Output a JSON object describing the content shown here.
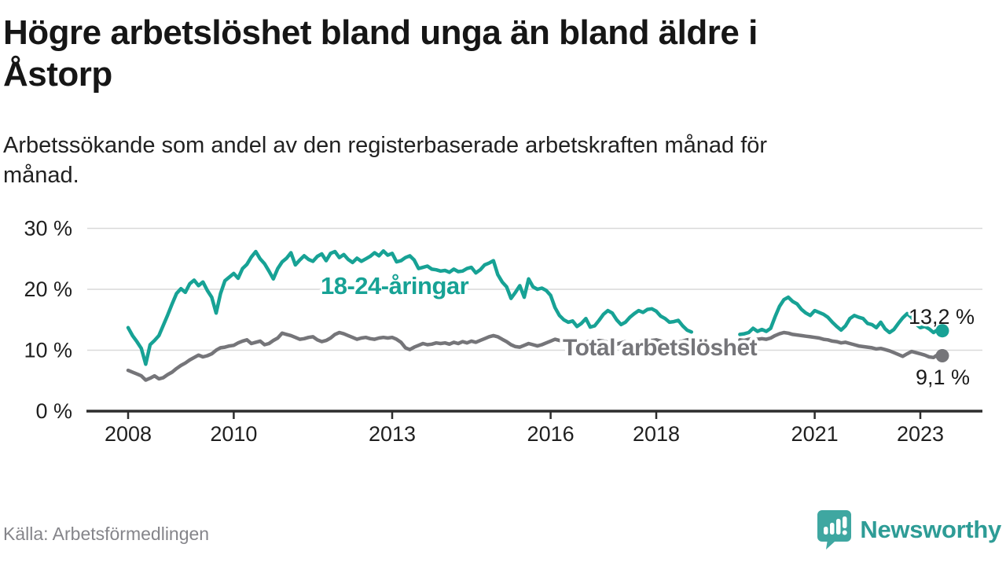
{
  "header": {
    "title_lines": [
      "Högre arbetslöshet bland unga än bland äldre i",
      "Åstorp"
    ],
    "subtitle_lines": [
      "Arbetssökande som andel av den registerbaserade arbetskraften månad för",
      "månad."
    ]
  },
  "chart_data": {
    "type": "line",
    "unit": "%",
    "frequency": "monthly",
    "start": "2008-01",
    "end": "2023-06",
    "data_gap": {
      "from": "2018-10",
      "to": "2019-07"
    },
    "ylim": [
      0,
      32
    ],
    "grid": "horizontal",
    "y_ticks": [
      {
        "label": "0 %",
        "value": 0
      },
      {
        "label": "10 %",
        "value": 10
      },
      {
        "label": "20 %",
        "value": 20
      },
      {
        "label": "30 %",
        "value": 30
      }
    ],
    "x_ticks": [
      {
        "label": "2008",
        "index": 0
      },
      {
        "label": "2010",
        "index": 24
      },
      {
        "label": "2013",
        "index": 60
      },
      {
        "label": "2016",
        "index": 96
      },
      {
        "label": "2018",
        "index": 120
      },
      {
        "label": "2021",
        "index": 156
      },
      {
        "label": "2023",
        "index": 180
      }
    ],
    "series": [
      {
        "key": "youth",
        "label": "18-24-åringar",
        "color": "#17A295",
        "end_value": 13.2,
        "end_label": "13,2 %",
        "values": [
          13.7,
          12.4,
          11.4,
          10.3,
          7.7,
          10.9,
          11.6,
          12.4,
          14.1,
          15.8,
          17.6,
          19.3,
          20.1,
          19.5,
          20.9,
          21.5,
          20.6,
          21.2,
          19.8,
          18.7,
          16.1,
          19.3,
          21.4,
          22.0,
          22.6,
          21.8,
          23.4,
          24.1,
          25.3,
          26.2,
          25.0,
          24.2,
          23.0,
          21.7,
          23.4,
          24.5,
          25.1,
          26.0,
          24.0,
          24.8,
          25.5,
          24.9,
          24.6,
          25.4,
          25.8,
          24.7,
          25.9,
          26.2,
          25.2,
          25.7,
          24.9,
          24.4,
          25.1,
          24.6,
          25.0,
          25.4,
          26.0,
          25.5,
          26.3,
          25.6,
          25.9,
          24.5,
          24.7,
          25.2,
          25.5,
          24.8,
          23.4,
          23.6,
          23.8,
          23.3,
          23.2,
          23.0,
          23.1,
          22.8,
          23.3,
          22.9,
          23.0,
          23.4,
          23.6,
          22.7,
          23.2,
          24.0,
          24.3,
          24.7,
          22.4,
          21.2,
          20.4,
          18.5,
          19.5,
          20.6,
          18.7,
          21.7,
          20.4,
          20.0,
          20.2,
          19.8,
          19.0,
          17.0,
          15.7,
          15.0,
          14.6,
          14.8,
          13.9,
          14.4,
          15.2,
          13.8,
          14.0,
          14.9,
          15.9,
          16.5,
          16.1,
          15.0,
          14.2,
          14.6,
          15.4,
          16.0,
          16.5,
          16.2,
          16.7,
          16.8,
          16.4,
          15.6,
          15.2,
          14.6,
          14.7,
          14.9,
          14.0,
          13.3,
          13.0,
          null,
          null,
          null,
          null,
          null,
          null,
          null,
          null,
          null,
          null,
          12.6,
          12.7,
          12.9,
          13.6,
          13.1,
          13.4,
          13.1,
          13.6,
          15.5,
          17.2,
          18.3,
          18.7,
          18.0,
          17.6,
          16.7,
          16.1,
          15.7,
          16.5,
          16.2,
          15.9,
          15.4,
          14.6,
          13.9,
          13.3,
          14.0,
          15.2,
          15.7,
          15.4,
          15.2,
          14.4,
          14.2,
          13.7,
          14.6,
          13.5,
          12.9,
          13.4,
          14.4,
          15.3,
          16.0,
          15.4,
          14.3,
          13.7,
          13.9,
          13.5,
          12.9,
          13.4,
          13.2
        ]
      },
      {
        "key": "total",
        "label": "Total arbetslöshet",
        "color": "#757579",
        "end_value": 9.1,
        "end_label": "9,1 %",
        "values": [
          6.7,
          6.4,
          6.1,
          5.8,
          5.1,
          5.4,
          5.8,
          5.3,
          5.5,
          6.0,
          6.4,
          7.0,
          7.5,
          7.9,
          8.4,
          8.8,
          9.2,
          8.9,
          9.1,
          9.4,
          10.0,
          10.4,
          10.5,
          10.7,
          10.8,
          11.2,
          11.5,
          11.7,
          11.1,
          11.3,
          11.5,
          10.9,
          11.1,
          11.6,
          12.0,
          12.8,
          12.6,
          12.4,
          12.1,
          11.8,
          11.9,
          12.1,
          12.2,
          11.7,
          11.4,
          11.6,
          12.0,
          12.6,
          12.9,
          12.7,
          12.4,
          12.1,
          11.8,
          12.0,
          12.1,
          11.9,
          11.8,
          12.0,
          12.1,
          12.0,
          12.1,
          11.8,
          11.3,
          10.4,
          10.1,
          10.5,
          10.8,
          11.1,
          10.9,
          11.0,
          11.2,
          11.1,
          11.2,
          11.0,
          11.3,
          11.1,
          11.4,
          11.2,
          11.5,
          11.3,
          11.6,
          11.9,
          12.2,
          12.4,
          12.2,
          11.8,
          11.4,
          10.9,
          10.6,
          10.5,
          10.8,
          11.1,
          10.9,
          10.7,
          10.9,
          11.2,
          11.5,
          11.8,
          11.6,
          11.4,
          11.3,
          11.5,
          11.3,
          11.1,
          11.3,
          11.5,
          11.4,
          11.6,
          11.5,
          11.3,
          11.1,
          11.0,
          11.2,
          11.4,
          11.3,
          11.1,
          11.3,
          11.5,
          11.7,
          11.6,
          11.7,
          11.5,
          11.3,
          11.2,
          11.4,
          11.3,
          11.5,
          11.7,
          11.8,
          null,
          null,
          null,
          null,
          null,
          null,
          null,
          null,
          null,
          null,
          11.7,
          11.6,
          11.8,
          11.9,
          11.8,
          11.9,
          11.8,
          12.0,
          12.4,
          12.7,
          12.9,
          12.8,
          12.6,
          12.5,
          12.4,
          12.3,
          12.2,
          12.1,
          12.0,
          11.8,
          11.7,
          11.5,
          11.4,
          11.2,
          11.3,
          11.1,
          10.9,
          10.7,
          10.6,
          10.5,
          10.4,
          10.2,
          10.3,
          10.1,
          9.9,
          9.6,
          9.3,
          9.0,
          9.4,
          9.8,
          9.6,
          9.4,
          9.2,
          8.9,
          8.8,
          9.3,
          9.1
        ]
      }
    ]
  },
  "footer": {
    "source": "Källa: Arbetsförmedlingen",
    "brand": "Newsworthy",
    "brand_color": "#2E9C96",
    "logo_color": "#3FA7A1"
  }
}
